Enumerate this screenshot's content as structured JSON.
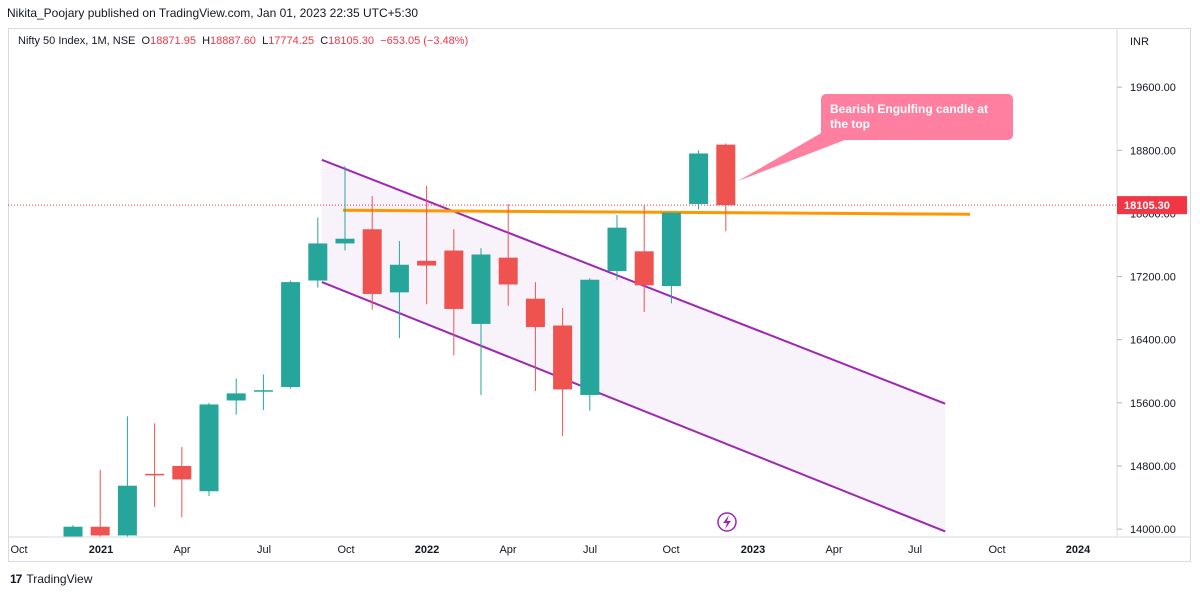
{
  "publisher": "Nikita_Poojary published on TradingView.com, Jan 01, 2023 22:35 UTC+5:30",
  "legend": {
    "symbol": "Nifty 50 Index, 1M, NSE",
    "open_label": "O",
    "open": "18871.95",
    "high_label": "H",
    "high": "18887.60",
    "low_label": "L",
    "low": "17774.25",
    "close_label": "C",
    "close": "18105.30",
    "change": "−653.05 (−3.48%)"
  },
  "footer": {
    "brand": "TradingView",
    "logo": "17"
  },
  "colors": {
    "up": "#26a69a",
    "down": "#ef5350",
    "channel": "#9c27b0",
    "channel_fill": "#f8f3fb",
    "resistance": "#ff9800",
    "callout": "#ff7fa1",
    "last_price": "#f23645",
    "dotted": "#f23645"
  },
  "chart_data": {
    "type": "candlestick",
    "currency_label": "INR",
    "y_ticks": [
      14000,
      14800,
      15600,
      16400,
      17200,
      18000,
      18800,
      19600
    ],
    "y_tick_labels": [
      "14000.00",
      "14800.00",
      "15600.00",
      "16400.00",
      "17200.00",
      "18000.00",
      "18800.00",
      "19600.00"
    ],
    "ylim": [
      13900,
      20350
    ],
    "x_ticks": [
      "Oct",
      "2021",
      "Apr",
      "Jul",
      "Oct",
      "2022",
      "Apr",
      "Jul",
      "Oct",
      "2023",
      "Apr",
      "Jul",
      "Oct",
      "2024"
    ],
    "candles": [
      {
        "date": "2020-12",
        "o": 13900,
        "h": 14050,
        "l": 13900,
        "c": 14030
      },
      {
        "date": "2021-01",
        "o": 14030,
        "h": 14750,
        "l": 13900,
        "c": 13920
      },
      {
        "date": "2021-02",
        "o": 13920,
        "h": 15430,
        "l": 13900,
        "c": 14550
      },
      {
        "date": "2021-03",
        "o": 14700,
        "h": 15340,
        "l": 14280,
        "c": 14690
      },
      {
        "date": "2021-04",
        "o": 14800,
        "h": 15040,
        "l": 14150,
        "c": 14630
      },
      {
        "date": "2021-05",
        "o": 14480,
        "h": 15600,
        "l": 14420,
        "c": 15580
      },
      {
        "date": "2021-06",
        "o": 15630,
        "h": 15910,
        "l": 15450,
        "c": 15720
      },
      {
        "date": "2021-07",
        "o": 15750,
        "h": 15960,
        "l": 15510,
        "c": 15760
      },
      {
        "date": "2021-08",
        "o": 15800,
        "h": 17150,
        "l": 15780,
        "c": 17130
      },
      {
        "date": "2021-09",
        "o": 17150,
        "h": 17950,
        "l": 17060,
        "c": 17620
      },
      {
        "date": "2021-10",
        "o": 17620,
        "h": 18600,
        "l": 17530,
        "c": 17680
      },
      {
        "date": "2021-11",
        "o": 17800,
        "h": 18220,
        "l": 16780,
        "c": 16980
      },
      {
        "date": "2021-12",
        "o": 17000,
        "h": 17650,
        "l": 16420,
        "c": 17350
      },
      {
        "date": "2022-01",
        "o": 17400,
        "h": 18350,
        "l": 16850,
        "c": 17340
      },
      {
        "date": "2022-02",
        "o": 17530,
        "h": 17800,
        "l": 16200,
        "c": 16790
      },
      {
        "date": "2022-03",
        "o": 16600,
        "h": 17560,
        "l": 15700,
        "c": 17480
      },
      {
        "date": "2022-04",
        "o": 17440,
        "h": 18120,
        "l": 16830,
        "c": 17100
      },
      {
        "date": "2022-05",
        "o": 16920,
        "h": 17130,
        "l": 15750,
        "c": 16560
      },
      {
        "date": "2022-06",
        "o": 16580,
        "h": 16800,
        "l": 15180,
        "c": 15770
      },
      {
        "date": "2022-07",
        "o": 15700,
        "h": 17180,
        "l": 15500,
        "c": 17160
      },
      {
        "date": "2022-08",
        "o": 17270,
        "h": 17980,
        "l": 17160,
        "c": 17820
      },
      {
        "date": "2022-09",
        "o": 17520,
        "h": 18100,
        "l": 16750,
        "c": 17090
      },
      {
        "date": "2022-10",
        "o": 17080,
        "h": 18010,
        "l": 16860,
        "c": 18010
      },
      {
        "date": "2022-11",
        "o": 18120,
        "h": 18800,
        "l": 18050,
        "c": 18760
      },
      {
        "date": "2022-12",
        "o": 18871.95,
        "h": 18887.6,
        "l": 17774.25,
        "c": 18105.3
      }
    ],
    "last_price_label": "18105.30",
    "annotation": "Bearish Engulfing candle at the top"
  }
}
